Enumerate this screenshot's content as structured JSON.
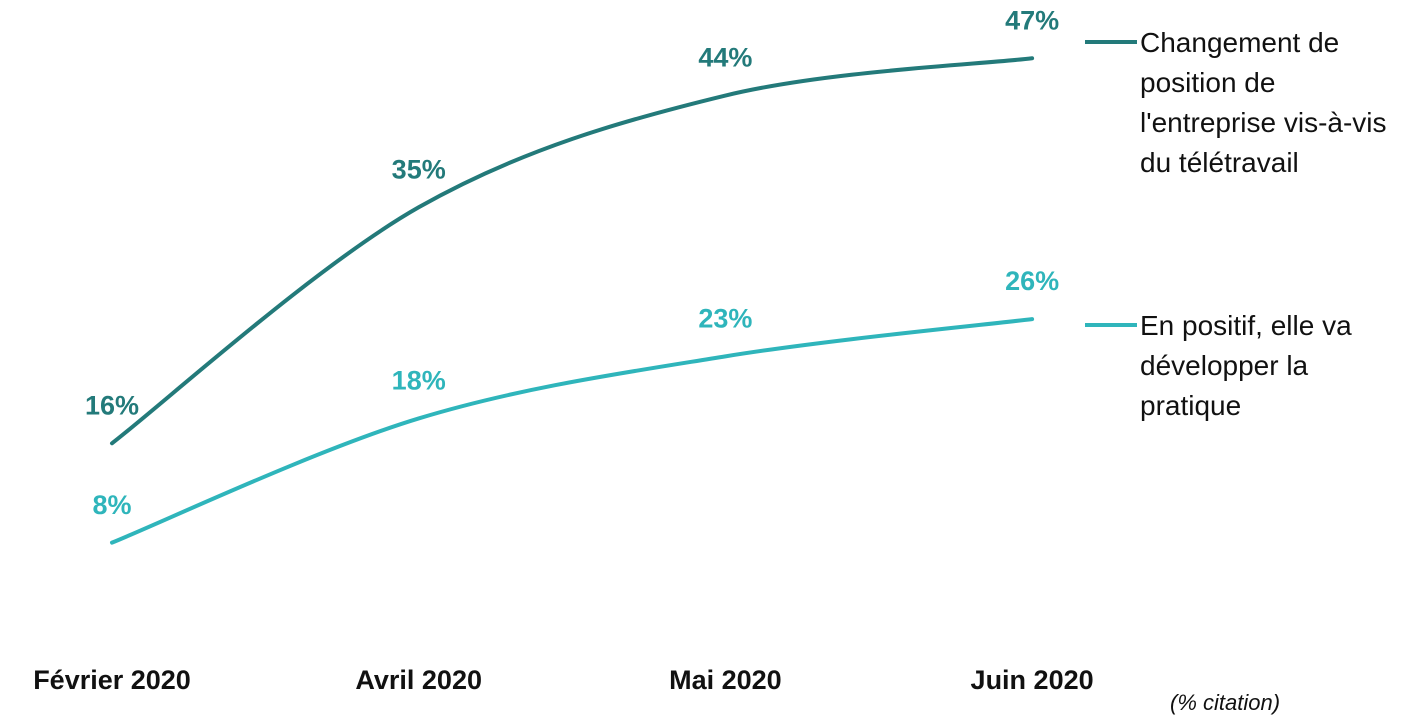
{
  "chart_data": {
    "type": "line",
    "categories": [
      "Février 2020",
      "Avril 2020",
      "Mai 2020",
      "Juin 2020"
    ],
    "series": [
      {
        "name": "Changement de position de l'entreprise vis-à-vis du télétravail",
        "color": "#237a7a",
        "values": [
          16,
          35,
          44,
          47
        ],
        "value_labels": [
          "16%",
          "35%",
          "44%",
          "47%"
        ]
      },
      {
        "name": "En positif, elle va développer la pratique",
        "color": "#2fb5bb",
        "values": [
          8,
          18,
          23,
          26
        ],
        "value_labels": [
          "8%",
          "18%",
          "23%",
          "26%"
        ]
      }
    ],
    "note": "(% citation)"
  }
}
